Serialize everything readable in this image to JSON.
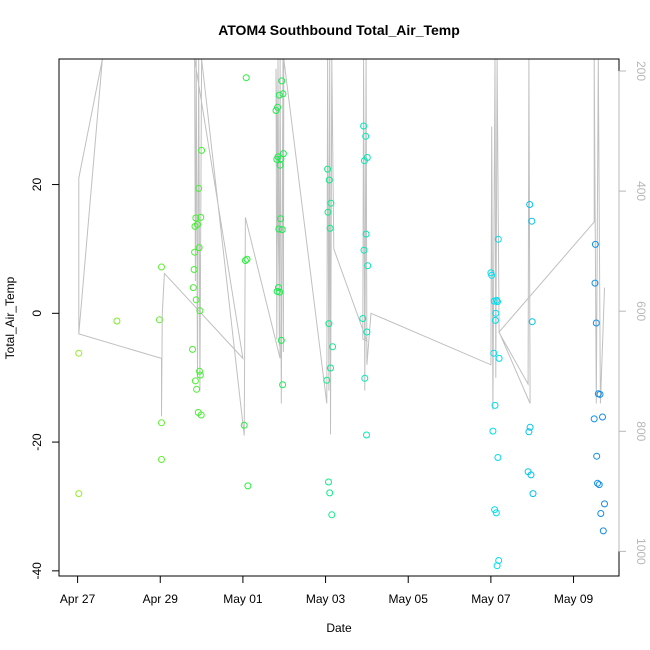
{
  "chart_data": {
    "type": "scatter",
    "title": "ATOM4 Southbound Total_Air_Temp",
    "xlabel": "Date",
    "ylabel": "Total_Air_Temp",
    "x_unit": "days after Apr 27",
    "xlim": [
      -0.45,
      13.1
    ],
    "ylim": [
      -40.8,
      39.5
    ],
    "x_ticks": [
      {
        "value": 0,
        "label": "Apr 27"
      },
      {
        "value": 2,
        "label": "Apr 29"
      },
      {
        "value": 4,
        "label": "May 01"
      },
      {
        "value": 6,
        "label": "May 03"
      },
      {
        "value": 8,
        "label": "May 05"
      },
      {
        "value": 10,
        "label": "May 07"
      },
      {
        "value": 12,
        "label": "May 09"
      }
    ],
    "y_ticks": [
      {
        "value": -40,
        "label": "-40"
      },
      {
        "value": -20,
        "label": "-20"
      },
      {
        "value": 0,
        "label": "0"
      },
      {
        "value": 20,
        "label": "20"
      }
    ],
    "y2_lim": [
      1041,
      180
    ],
    "y2_ticks": [
      {
        "value": 200,
        "label": "200"
      },
      {
        "value": 400,
        "label": "400"
      },
      {
        "value": 600,
        "label": "600"
      },
      {
        "value": 800,
        "label": "800"
      },
      {
        "value": 1000,
        "label": "1000"
      }
    ],
    "colors": {
      "line": "#c0c0c0",
      "axis": "#000000",
      "right_axis": "#b8b8b8"
    },
    "series": [
      {
        "name": "points",
        "points": [
          [
            0.03,
            -6.2
          ],
          [
            0.03,
            -28.0
          ],
          [
            0.95,
            -1.2
          ],
          [
            1.98,
            -1.0
          ],
          [
            2.03,
            7.2
          ],
          [
            2.03,
            -17.0
          ],
          [
            2.03,
            -22.7
          ],
          [
            2.78,
            -5.6
          ],
          [
            2.8,
            4.0
          ],
          [
            2.82,
            6.8
          ],
          [
            2.83,
            9.5
          ],
          [
            2.84,
            13.5
          ],
          [
            2.85,
            -10.5
          ],
          [
            2.86,
            14.8
          ],
          [
            2.87,
            2.1
          ],
          [
            2.88,
            -11.8
          ],
          [
            2.9,
            13.8
          ],
          [
            2.92,
            -15.4
          ],
          [
            2.93,
            19.4
          ],
          [
            2.94,
            10.2
          ],
          [
            2.95,
            -9.0
          ],
          [
            2.96,
            0.4
          ],
          [
            2.97,
            -9.6
          ],
          [
            2.98,
            14.9
          ],
          [
            2.99,
            -15.8
          ],
          [
            3.0,
            25.3
          ],
          [
            4.03,
            -17.4
          ],
          [
            4.06,
            8.2
          ],
          [
            4.1,
            8.4
          ],
          [
            4.08,
            36.6
          ],
          [
            4.12,
            -26.8
          ],
          [
            4.8,
            31.5
          ],
          [
            4.82,
            23.9
          ],
          [
            4.83,
            3.4
          ],
          [
            4.84,
            32.0
          ],
          [
            4.85,
            24.3
          ],
          [
            4.86,
            4.0
          ],
          [
            4.87,
            13.1
          ],
          [
            4.88,
            33.9
          ],
          [
            4.89,
            3.3
          ],
          [
            4.9,
            23.0
          ],
          [
            4.91,
            14.7
          ],
          [
            4.92,
            24.0
          ],
          [
            4.93,
            -4.2
          ],
          [
            4.94,
            36.1
          ],
          [
            4.95,
            13.0
          ],
          [
            4.96,
            -11.1
          ],
          [
            4.97,
            34.1
          ],
          [
            4.98,
            24.8
          ],
          [
            6.03,
            -10.4
          ],
          [
            6.05,
            22.4
          ],
          [
            6.06,
            15.7
          ],
          [
            6.07,
            -26.2
          ],
          [
            6.08,
            -1.6
          ],
          [
            6.09,
            20.7
          ],
          [
            6.1,
            -27.9
          ],
          [
            6.11,
            13.2
          ],
          [
            6.12,
            -8.5
          ],
          [
            6.13,
            17.1
          ],
          [
            6.15,
            -31.3
          ],
          [
            6.17,
            -5.2
          ],
          [
            6.9,
            -0.8
          ],
          [
            6.92,
            29.1
          ],
          [
            6.93,
            9.8
          ],
          [
            6.94,
            23.7
          ],
          [
            6.95,
            -10.1
          ],
          [
            6.97,
            27.5
          ],
          [
            6.98,
            12.3
          ],
          [
            6.99,
            -18.9
          ],
          [
            7.0,
            -2.9
          ],
          [
            7.01,
            24.2
          ],
          [
            7.02,
            7.4
          ],
          [
            10.0,
            6.3
          ],
          [
            10.02,
            5.9
          ],
          [
            10.05,
            -18.3
          ],
          [
            10.07,
            -6.2
          ],
          [
            10.08,
            1.9
          ],
          [
            10.09,
            -30.5
          ],
          [
            10.1,
            -14.3
          ],
          [
            10.11,
            -1.1
          ],
          [
            10.12,
            0.0
          ],
          [
            10.13,
            -31.0
          ],
          [
            10.14,
            2.0
          ],
          [
            10.15,
            -39.2
          ],
          [
            10.16,
            1.8
          ],
          [
            10.17,
            -22.4
          ],
          [
            10.18,
            11.5
          ],
          [
            10.19,
            -38.4
          ],
          [
            10.2,
            -7.0
          ],
          [
            10.9,
            -24.6
          ],
          [
            10.92,
            -18.4
          ],
          [
            10.94,
            16.9
          ],
          [
            10.95,
            -17.7
          ],
          [
            10.97,
            -25.1
          ],
          [
            10.99,
            14.3
          ],
          [
            11.0,
            -1.3
          ],
          [
            11.02,
            -28.0
          ],
          [
            12.5,
            -16.4
          ],
          [
            12.52,
            4.7
          ],
          [
            12.53,
            10.7
          ],
          [
            12.55,
            -1.5
          ],
          [
            12.56,
            -22.2
          ],
          [
            12.58,
            -26.4
          ],
          [
            12.6,
            -12.5
          ],
          [
            12.62,
            -26.6
          ],
          [
            12.64,
            -12.6
          ],
          [
            12.66,
            -31.1
          ],
          [
            12.7,
            -16.1
          ],
          [
            12.72,
            -33.8
          ],
          [
            12.75,
            -29.6
          ]
        ]
      },
      {
        "name": "trajectory",
        "points": [
          [
            0.03,
            -3.2
          ],
          [
            0.03,
            21.0
          ],
          [
            0.6,
            39.5
          ],
          [
            0.6,
            39.5
          ],
          [
            0.03,
            -3.2
          ],
          [
            2.03,
            -7.0
          ],
          [
            2.03,
            -16.0
          ],
          [
            2.05,
            0.0
          ],
          [
            2.1,
            6.2
          ],
          [
            4.0,
            -7.0
          ],
          [
            2.83,
            39.5
          ],
          [
            2.85,
            5.0
          ],
          [
            2.87,
            39.5
          ],
          [
            2.9,
            -10.0
          ],
          [
            2.93,
            39.5
          ],
          [
            2.96,
            -12.0
          ],
          [
            3.0,
            39.5
          ],
          [
            4.03,
            -19.0
          ],
          [
            4.06,
            14.9
          ],
          [
            4.9,
            -7.0
          ],
          [
            4.8,
            38.0
          ],
          [
            4.82,
            -4.0
          ],
          [
            4.85,
            39.5
          ],
          [
            4.88,
            -5.0
          ],
          [
            4.9,
            39.5
          ],
          [
            4.93,
            -14.0
          ],
          [
            4.97,
            39.5
          ],
          [
            4.98,
            -6.0
          ],
          [
            4.99,
            39.5
          ],
          [
            6.03,
            -14.0
          ],
          [
            6.05,
            39.5
          ],
          [
            6.08,
            -12.0
          ],
          [
            6.1,
            39.5
          ],
          [
            6.12,
            -18.8
          ],
          [
            6.15,
            39.5
          ],
          [
            6.2,
            10.0
          ],
          [
            7.0,
            -4.3
          ],
          [
            6.9,
            -4.0
          ],
          [
            6.92,
            39.5
          ],
          [
            6.95,
            -12.0
          ],
          [
            6.98,
            39.5
          ],
          [
            7.0,
            -8.0
          ],
          [
            7.1,
            0.0
          ],
          [
            10.0,
            -8.0
          ],
          [
            10.02,
            29.0
          ],
          [
            10.05,
            -15.0
          ],
          [
            10.1,
            39.5
          ],
          [
            10.12,
            -10.0
          ],
          [
            10.15,
            39.5
          ],
          [
            10.2,
            -3.0
          ],
          [
            10.9,
            -11.0
          ],
          [
            10.92,
            39.5
          ],
          [
            10.95,
            -14.0
          ],
          [
            10.2,
            -2.9
          ],
          [
            12.5,
            14.2
          ],
          [
            12.5,
            39.5
          ],
          [
            12.55,
            -14.0
          ],
          [
            12.6,
            39.5
          ],
          [
            12.65,
            -14.0
          ],
          [
            12.7,
            -5.0
          ],
          [
            12.75,
            4.0
          ]
        ]
      }
    ]
  }
}
